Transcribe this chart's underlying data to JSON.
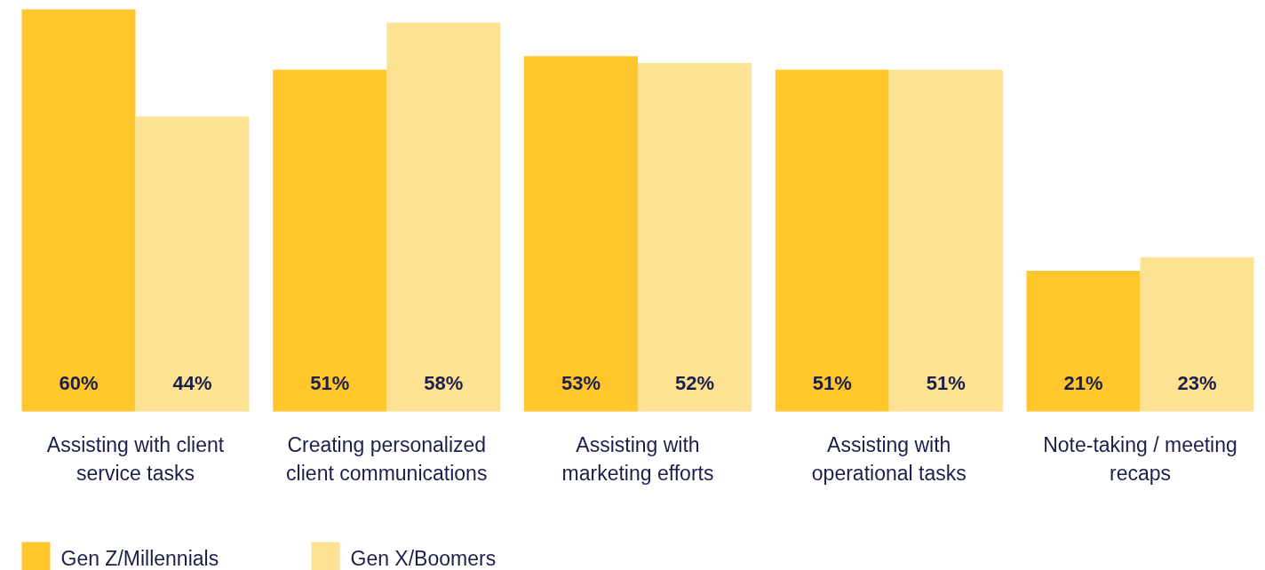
{
  "chart_data": {
    "type": "bar",
    "categories": [
      "Assisting with client service tasks",
      "Creating personalized client communications",
      "Assisting with marketing efforts",
      "Assisting with operational tasks",
      "Note-taking / meeting recaps"
    ],
    "series": [
      {
        "name": "Gen Z/Millennials",
        "color": "#ffc72c",
        "values": [
          60,
          51,
          53,
          51,
          21
        ],
        "value_labels": [
          "60%",
          "51%",
          "53%",
          "51%",
          "21%"
        ]
      },
      {
        "name": "Gen X/Boomers",
        "color": "#fde293",
        "values": [
          44,
          58,
          52,
          51,
          23
        ],
        "value_labels": [
          "44%",
          "58%",
          "52%",
          "51%",
          "23%"
        ]
      }
    ],
    "ylim": [
      0,
      60
    ],
    "grid": false,
    "legend": "bottom left"
  }
}
